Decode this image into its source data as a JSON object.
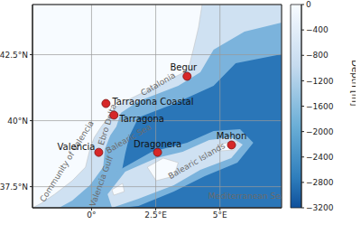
{
  "chart_data": {
    "type": "map",
    "xlim": [
      -2.3,
      7.4
    ],
    "ylim": [
      36.7,
      44.4
    ],
    "xticks": [
      {
        "value": 0,
        "label": "0°"
      },
      {
        "value": 2.5,
        "label": "2.5°E"
      },
      {
        "value": 5,
        "label": "5°E"
      }
    ],
    "yticks": [
      {
        "value": 37.5,
        "label": "37.5°N"
      },
      {
        "value": 40,
        "label": "40°N"
      },
      {
        "value": 42.5,
        "label": "42.5°N"
      }
    ],
    "grid": true,
    "color": "#d62728",
    "points": [
      {
        "name": "Begur",
        "x": 3.72,
        "y": 41.68
      },
      {
        "name": "Tarragona Coastal",
        "x": 0.56,
        "y": 40.65
      },
      {
        "name": "Tarragona",
        "x": 0.87,
        "y": 40.21
      },
      {
        "name": "Valencia",
        "x": 0.28,
        "y": 38.8
      },
      {
        "name": "Dragonera",
        "x": 2.57,
        "y": 38.8
      },
      {
        "name": "Mahon",
        "x": 5.45,
        "y": 39.08
      }
    ],
    "annotations": [
      "Catalonia",
      "Community of Valencia",
      "Ebro Delta",
      "Balearic Sea",
      "Valencia Gulf",
      "Balearic Islands",
      "Mediterranean Sea"
    ],
    "colorbar": {
      "label": "Depth [m]",
      "range": [
        -3200,
        0
      ],
      "ticks": [
        0,
        {
          "value": -400,
          "label": "−400"
        },
        {
          "value": -800,
          "label": "−800"
        },
        {
          "value": -1200,
          "label": "−1200"
        },
        {
          "value": -1600,
          "label": "−1600"
        },
        {
          "value": -2000,
          "label": "−2000"
        },
        {
          "value": -2400,
          "label": "−2400"
        },
        {
          "value": -2800,
          "label": "−2800"
        },
        {
          "value": -3200,
          "label": "−3200"
        }
      ]
    }
  }
}
